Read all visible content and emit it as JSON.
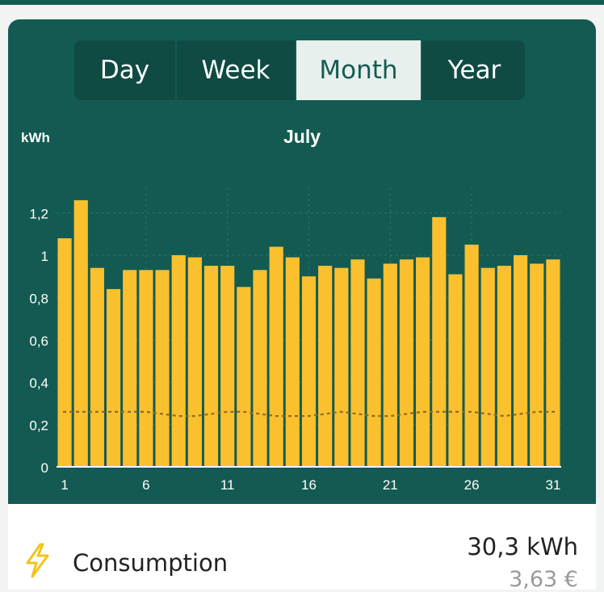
{
  "tabs": [
    {
      "label": "Day",
      "active": false
    },
    {
      "label": "Week",
      "active": false
    },
    {
      "label": "Month",
      "active": true
    },
    {
      "label": "Year",
      "active": false
    }
  ],
  "colors": {
    "background": "#135b52",
    "bar": "#fbc02d",
    "tab_active_bg": "#e8f0ee",
    "average_line": "#8a6d2a",
    "icon": "#f2c418"
  },
  "chart_data": {
    "type": "bar",
    "title": "July",
    "ylabel": "kWh",
    "ylim": [
      0,
      1.4
    ],
    "yticks": [
      "0",
      "0,2",
      "0,4",
      "0,6",
      "0,8",
      "1",
      "1,2"
    ],
    "ytick_values": [
      0,
      0.2,
      0.4,
      0.6,
      0.8,
      1.0,
      1.2
    ],
    "xtick_labels": [
      "1",
      "6",
      "11",
      "16",
      "21",
      "26",
      "31"
    ],
    "grid": true,
    "categories": [
      1,
      2,
      3,
      4,
      5,
      6,
      7,
      8,
      9,
      10,
      11,
      12,
      13,
      14,
      15,
      16,
      17,
      18,
      19,
      20,
      21,
      22,
      23,
      24,
      25,
      26,
      27,
      28,
      29,
      30,
      31
    ],
    "values": [
      1.08,
      1.26,
      0.94,
      0.84,
      0.93,
      0.93,
      0.93,
      1.0,
      0.99,
      0.95,
      0.95,
      0.85,
      0.93,
      1.04,
      0.99,
      0.9,
      0.95,
      0.94,
      0.98,
      0.89,
      0.96,
      0.98,
      0.99,
      1.18,
      0.91,
      1.05,
      0.94,
      0.95,
      1.0,
      0.96,
      0.98
    ],
    "reference_line": [
      0.26,
      0.26,
      0.26,
      0.26,
      0.26,
      0.26,
      0.25,
      0.24,
      0.24,
      0.25,
      0.26,
      0.26,
      0.25,
      0.24,
      0.24,
      0.24,
      0.25,
      0.26,
      0.25,
      0.24,
      0.24,
      0.25,
      0.26,
      0.26,
      0.26,
      0.26,
      0.25,
      0.24,
      0.25,
      0.26,
      0.26
    ]
  },
  "summary": {
    "label": "Consumption",
    "value": "30,3 kWh",
    "cost": "3,63 €",
    "icon": "lightning-bolt-icon"
  }
}
